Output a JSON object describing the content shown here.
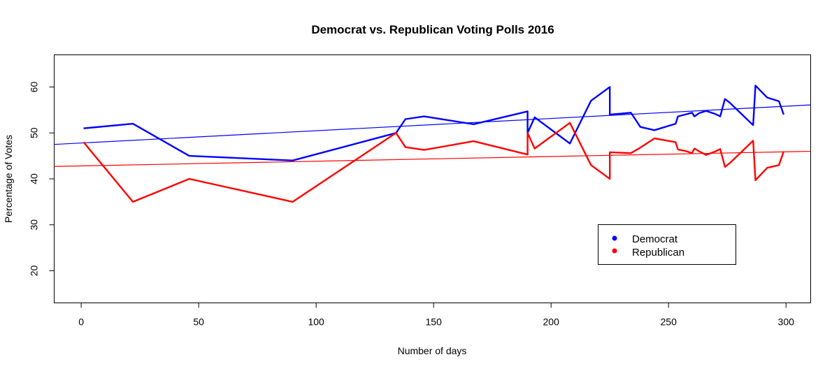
{
  "chart_data": {
    "type": "line",
    "title": "Democrat vs. Republican Voting Polls 2016",
    "xlabel": "Number of days",
    "ylabel": "Percentage of Votes",
    "xlim": [
      -11.5,
      310.5
    ],
    "ylim": [
      13,
      67
    ],
    "xticks": [
      0,
      50,
      100,
      150,
      200,
      250,
      300
    ],
    "yticks": [
      20,
      30,
      40,
      50,
      60
    ],
    "grid": false,
    "legend_position": "bottom-right",
    "series": [
      {
        "name": "Democrat",
        "color": "#0000ff",
        "x": [
          1,
          22,
          46,
          90,
          134,
          138,
          146,
          167,
          190,
          190,
          193,
          208,
          217,
          225,
          225,
          234,
          238,
          244,
          253,
          254,
          257,
          260,
          261,
          263,
          266,
          270,
          272,
          274,
          276,
          286,
          287,
          292,
          297,
          299
        ],
        "y": [
          51,
          52,
          45,
          44,
          50,
          53,
          53.6,
          51.9,
          54.7,
          50,
          53.4,
          47.7,
          57,
          60,
          54,
          54.4,
          51.3,
          50.6,
          52,
          53.6,
          54,
          54.4,
          53.6,
          54.3,
          54.8,
          54.1,
          53.6,
          57.4,
          56.6,
          51.7,
          60.3,
          57.7,
          56.9,
          54
        ]
      },
      {
        "name": "Republican",
        "color": "#ff0000",
        "x": [
          1,
          22,
          46,
          90,
          134,
          138,
          146,
          167,
          190,
          190,
          193,
          208,
          217,
          225,
          225,
          234,
          238,
          244,
          253,
          254,
          257,
          260,
          261,
          263,
          266,
          270,
          272,
          274,
          276,
          286,
          287,
          292,
          297,
          299
        ],
        "y": [
          48,
          35,
          40,
          35,
          50,
          46.9,
          46.3,
          48.2,
          45.3,
          50,
          46.6,
          52.2,
          43,
          40,
          45.8,
          45.6,
          46.8,
          48.8,
          48,
          46.4,
          46.1,
          45.6,
          46.6,
          46,
          45.2,
          46,
          46.5,
          42.6,
          43.4,
          48.3,
          39.7,
          42.4,
          43,
          46
        ]
      }
    ],
    "trendlines": [
      {
        "series": "Democrat",
        "color": "#0000ff",
        "x": [
          -11.5,
          310.5
        ],
        "y": [
          47.5,
          56.1
        ]
      },
      {
        "series": "Republican",
        "color": "#ff0000",
        "x": [
          -11.5,
          310.5
        ],
        "y": [
          42.7,
          46
        ]
      }
    ]
  }
}
